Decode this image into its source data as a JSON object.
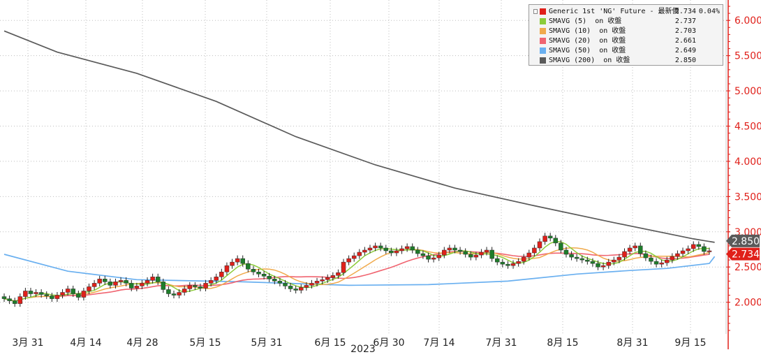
{
  "chart_data": {
    "type": "candlestick",
    "xlabel": "2023",
    "x_ticks": [
      "3月 31",
      "4月 14",
      "4月 28",
      "5月 15",
      "5月 31",
      "6月 15",
      "6月 30",
      "7月 14",
      "7月 31",
      "8月 15",
      "8月 31",
      "9月 15"
    ],
    "y_ticks": [
      "2.000",
      "2.500",
      "3.000",
      "3.500",
      "4.000",
      "4.500",
      "5.000",
      "5.500",
      "6.000"
    ],
    "ylim": [
      1.55,
      6.25
    ],
    "grid": true,
    "legend_position": "top-right",
    "series": [
      {
        "name": "Generic 1st 'NG' Future - 最新價",
        "value": "2.734",
        "change": "0.04%",
        "color": "#e0201a",
        "closes": [
          2.05,
          2.02,
          1.98,
          2.08,
          2.16,
          2.12,
          2.14,
          2.11,
          2.09,
          2.05,
          2.1,
          2.14,
          2.19,
          2.12,
          2.07,
          2.16,
          2.22,
          2.27,
          2.33,
          2.29,
          2.24,
          2.29,
          2.31,
          2.27,
          2.2,
          2.23,
          2.27,
          2.31,
          2.36,
          2.29,
          2.18,
          2.12,
          2.1,
          2.14,
          2.19,
          2.24,
          2.22,
          2.2,
          2.27,
          2.31,
          2.36,
          2.43,
          2.52,
          2.57,
          2.62,
          2.55,
          2.47,
          2.43,
          2.4,
          2.37,
          2.33,
          2.3,
          2.27,
          2.23,
          2.19,
          2.17,
          2.21,
          2.24,
          2.27,
          2.3,
          2.32,
          2.35,
          2.38,
          2.42,
          2.57,
          2.62,
          2.66,
          2.71,
          2.74,
          2.77,
          2.8,
          2.77,
          2.73,
          2.7,
          2.73,
          2.76,
          2.79,
          2.74,
          2.69,
          2.66,
          2.61,
          2.63,
          2.67,
          2.74,
          2.77,
          2.74,
          2.72,
          2.68,
          2.64,
          2.67,
          2.71,
          2.74,
          2.62,
          2.57,
          2.54,
          2.52,
          2.55,
          2.58,
          2.64,
          2.7,
          2.77,
          2.86,
          2.94,
          2.91,
          2.84,
          2.74,
          2.68,
          2.64,
          2.62,
          2.6,
          2.58,
          2.55,
          2.5,
          2.52,
          2.57,
          2.6,
          2.64,
          2.72,
          2.77,
          2.8,
          2.69,
          2.63,
          2.58,
          2.54,
          2.56,
          2.6,
          2.65,
          2.69,
          2.73,
          2.76,
          2.82,
          2.79,
          2.72,
          2.73
        ]
      },
      {
        "name": "SMAVG (5)  on 收盤",
        "value": "2.737",
        "color": "#8ccc3a"
      },
      {
        "name": "SMAVG (10)  on 收盤",
        "value": "2.703",
        "color": "#f0aa4c"
      },
      {
        "name": "SMAVG (20)  on 收盤",
        "value": "2.661",
        "color": "#f06470"
      },
      {
        "name": "SMAVG (50)  on 收盤",
        "value": "2.649",
        "color": "#6ab0f0",
        "points": [
          [
            0,
            2.68
          ],
          [
            12,
            2.44
          ],
          [
            25,
            2.32
          ],
          [
            45,
            2.29
          ],
          [
            65,
            2.24
          ],
          [
            80,
            2.25
          ],
          [
            95,
            2.3
          ],
          [
            108,
            2.4
          ],
          [
            118,
            2.45
          ],
          [
            125,
            2.48
          ],
          [
            133,
            2.55
          ],
          [
            134,
            2.649
          ]
        ]
      },
      {
        "name": "SMAVG (200)  on 收盤",
        "value": "2.850",
        "color": "#5a5a5a",
        "points": [
          [
            0,
            5.85
          ],
          [
            10,
            5.55
          ],
          [
            25,
            5.25
          ],
          [
            40,
            4.85
          ],
          [
            55,
            4.35
          ],
          [
            70,
            3.95
          ],
          [
            85,
            3.62
          ],
          [
            100,
            3.37
          ],
          [
            115,
            3.13
          ],
          [
            130,
            2.9
          ],
          [
            134,
            2.85
          ]
        ]
      }
    ],
    "last_price_labels": [
      {
        "text": "2.850",
        "color": "#5a5a5a"
      },
      {
        "text": "2.734",
        "color": "#e0201a"
      }
    ]
  }
}
